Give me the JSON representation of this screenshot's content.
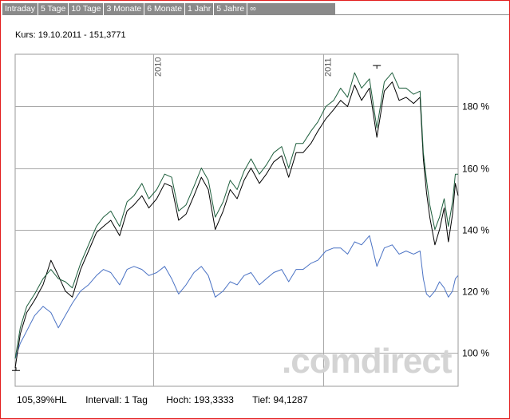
{
  "tabs": [
    "Intraday",
    "5 Tage",
    "10 Tage",
    "3 Monate",
    "6 Monate",
    "1 Jahr",
    "5 Jahre",
    "∞"
  ],
  "kurs_label": "Kurs: 19.10.2011 - 151,3771",
  "watermark": ".comdirect",
  "footer": {
    "hl": "105,39%HL",
    "intervall": "Intervall: 1 Tag",
    "hoch": "Hoch: 193,3333",
    "tief": "Tief: 94,1287"
  },
  "colors": {
    "black_series": "#000000",
    "green_series": "#1d5e3c",
    "blue_series": "#4a72c4",
    "frame": "#e31d1d",
    "tabs": "#8a8a8a"
  },
  "chart_data": {
    "type": "line",
    "x_type": "date",
    "x_range": [
      "2009-03-09",
      "2011-10-19"
    ],
    "year_markers": [
      {
        "label": "2010",
        "date": "2010-01-01"
      },
      {
        "label": "2011",
        "date": "2011-01-01"
      }
    ],
    "y_unit": "%",
    "ylim": [
      89,
      197
    ],
    "y_ticks": [
      {
        "value": 100,
        "label": "100 %"
      },
      {
        "value": 120,
        "label": "120 %"
      },
      {
        "value": 140,
        "label": "140 %"
      },
      {
        "value": 160,
        "label": "160 %"
      },
      {
        "value": 180,
        "label": "180 %"
      }
    ],
    "grid": true,
    "series": [
      {
        "color": "#000000",
        "x": [
          "2009-03-09",
          "2009-03-20",
          "2009-04-03",
          "2009-04-20",
          "2009-05-08",
          "2009-05-25",
          "2009-06-10",
          "2009-06-25",
          "2009-07-10",
          "2009-07-28",
          "2009-08-14",
          "2009-08-31",
          "2009-09-15",
          "2009-10-01",
          "2009-10-20",
          "2009-11-05",
          "2009-11-20",
          "2009-12-07",
          "2009-12-22",
          "2010-01-08",
          "2010-01-25",
          "2010-02-09",
          "2010-02-24",
          "2010-03-12",
          "2010-03-29",
          "2010-04-14",
          "2010-04-29",
          "2010-05-14",
          "2010-05-31",
          "2010-06-15",
          "2010-06-30",
          "2010-07-15",
          "2010-07-30",
          "2010-08-17",
          "2010-09-01",
          "2010-09-17",
          "2010-10-04",
          "2010-10-19",
          "2010-11-04",
          "2010-11-19",
          "2010-12-06",
          "2010-12-21",
          "2011-01-07",
          "2011-01-24",
          "2011-02-08",
          "2011-02-23",
          "2011-03-10",
          "2011-03-25",
          "2011-04-11",
          "2011-04-27",
          "2011-05-13",
          "2011-05-30",
          "2011-06-14",
          "2011-06-29",
          "2011-07-15",
          "2011-07-29",
          "2011-08-05",
          "2011-08-12",
          "2011-08-19",
          "2011-08-30",
          "2011-09-09",
          "2011-09-19",
          "2011-09-28",
          "2011-10-07",
          "2011-10-13",
          "2011-10-19"
        ],
        "values": [
          95,
          106,
          113,
          117,
          122,
          130,
          125,
          120,
          118,
          127,
          133,
          139,
          141,
          143,
          138,
          146,
          148,
          151,
          147,
          150,
          155,
          154,
          143,
          145,
          151,
          157,
          153,
          140,
          146,
          153,
          150,
          156,
          160,
          155,
          158,
          162,
          164,
          157,
          165,
          165,
          168,
          172,
          176,
          179,
          182,
          180,
          187,
          182,
          186,
          170,
          185,
          188,
          182,
          183,
          181,
          183,
          163,
          152,
          144,
          135,
          140,
          147,
          136,
          145,
          155,
          151
        ]
      },
      {
        "color": "#1d5e3c",
        "x": [
          "2009-03-09",
          "2009-03-20",
          "2009-04-03",
          "2009-04-20",
          "2009-05-08",
          "2009-05-25",
          "2009-06-10",
          "2009-06-25",
          "2009-07-10",
          "2009-07-28",
          "2009-08-14",
          "2009-08-31",
          "2009-09-15",
          "2009-10-01",
          "2009-10-20",
          "2009-11-05",
          "2009-11-20",
          "2009-12-07",
          "2009-12-22",
          "2010-01-08",
          "2010-01-25",
          "2010-02-09",
          "2010-02-24",
          "2010-03-12",
          "2010-03-29",
          "2010-04-14",
          "2010-04-29",
          "2010-05-14",
          "2010-05-31",
          "2010-06-15",
          "2010-06-30",
          "2010-07-15",
          "2010-07-30",
          "2010-08-17",
          "2010-09-01",
          "2010-09-17",
          "2010-10-04",
          "2010-10-19",
          "2010-11-04",
          "2010-11-19",
          "2010-12-06",
          "2010-12-21",
          "2011-01-07",
          "2011-01-24",
          "2011-02-08",
          "2011-02-23",
          "2011-03-10",
          "2011-03-25",
          "2011-04-11",
          "2011-04-27",
          "2011-05-13",
          "2011-05-30",
          "2011-06-14",
          "2011-06-29",
          "2011-07-15",
          "2011-07-29",
          "2011-08-05",
          "2011-08-12",
          "2011-08-19",
          "2011-08-30",
          "2011-09-09",
          "2011-09-19",
          "2011-09-28",
          "2011-10-07",
          "2011-10-13",
          "2011-10-19"
        ],
        "values": [
          98,
          108,
          115,
          119,
          124,
          127,
          124,
          123,
          121,
          129,
          135,
          141,
          144,
          146,
          141,
          149,
          151,
          155,
          150,
          153,
          158,
          157,
          146,
          148,
          154,
          160,
          156,
          144,
          149,
          156,
          153,
          159,
          163,
          158,
          161,
          165,
          167,
          160,
          168,
          168,
          172,
          175,
          180,
          182,
          186,
          183,
          191,
          186,
          189,
          173,
          188,
          191,
          186,
          186,
          184,
          185,
          165,
          156,
          148,
          140,
          144,
          150,
          141,
          149,
          158,
          158
        ]
      },
      {
        "color": "#4a72c4",
        "x": [
          "2009-03-09",
          "2009-03-20",
          "2009-04-03",
          "2009-04-20",
          "2009-05-08",
          "2009-05-25",
          "2009-06-10",
          "2009-06-25",
          "2009-07-10",
          "2009-07-28",
          "2009-08-14",
          "2009-08-31",
          "2009-09-15",
          "2009-10-01",
          "2009-10-20",
          "2009-11-05",
          "2009-11-20",
          "2009-12-07",
          "2009-12-22",
          "2010-01-08",
          "2010-01-25",
          "2010-02-09",
          "2010-02-24",
          "2010-03-12",
          "2010-03-29",
          "2010-04-14",
          "2010-04-29",
          "2010-05-14",
          "2010-05-31",
          "2010-06-15",
          "2010-06-30",
          "2010-07-15",
          "2010-07-30",
          "2010-08-17",
          "2010-09-01",
          "2010-09-17",
          "2010-10-04",
          "2010-10-19",
          "2010-11-04",
          "2010-11-19",
          "2010-12-06",
          "2010-12-21",
          "2011-01-07",
          "2011-01-24",
          "2011-02-08",
          "2011-02-23",
          "2011-03-10",
          "2011-03-25",
          "2011-04-11",
          "2011-04-27",
          "2011-05-13",
          "2011-05-30",
          "2011-06-14",
          "2011-06-29",
          "2011-07-15",
          "2011-07-29",
          "2011-08-05",
          "2011-08-12",
          "2011-08-19",
          "2011-08-30",
          "2011-09-09",
          "2011-09-19",
          "2011-09-28",
          "2011-10-07",
          "2011-10-13",
          "2011-10-19"
        ],
        "values": [
          98,
          103,
          107,
          112,
          115,
          113,
          108,
          112,
          116,
          120,
          122,
          125,
          127,
          126,
          122,
          127,
          128,
          127,
          125,
          126,
          128,
          124,
          119,
          122,
          126,
          128,
          125,
          118,
          120,
          123,
          122,
          125,
          126,
          122,
          124,
          126,
          127,
          123,
          127,
          127,
          129,
          130,
          133,
          134,
          134,
          132,
          136,
          135,
          138,
          128,
          134,
          135,
          132,
          133,
          132,
          133,
          124,
          119,
          118,
          120,
          123,
          121,
          118,
          120,
          124,
          125
        ]
      }
    ]
  }
}
